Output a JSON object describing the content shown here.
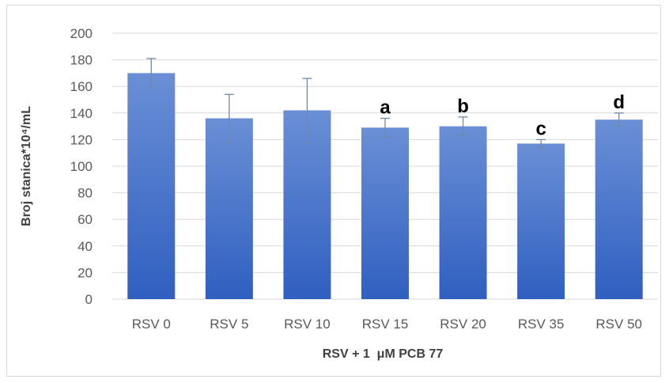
{
  "chart_data": {
    "type": "bar",
    "categories": [
      "RSV 0",
      "RSV 5",
      "RSV 10",
      "RSV 15",
      "RSV 20",
      "RSV 35",
      "RSV 50"
    ],
    "values": [
      170,
      136,
      142,
      129,
      130,
      117,
      135
    ],
    "error_plus": [
      11,
      18,
      24,
      7,
      7,
      3,
      5
    ],
    "error_minus": [
      11,
      18,
      25,
      7,
      7,
      3,
      5
    ],
    "bar_labels": [
      "",
      "",
      "",
      "a",
      "b",
      "c",
      "d"
    ],
    "ylim": [
      0,
      200
    ],
    "yticks": [
      0,
      20,
      40,
      60,
      80,
      100,
      120,
      140,
      160,
      180,
      200
    ],
    "ylabel": "Broj stanica*10⁴/mL",
    "xlabel": "RSV + 1  μM PCB 77",
    "grid": true,
    "colors": {
      "bar_top": "#6a8fd6",
      "bar_bottom": "#2f5fc0",
      "error": "#6f8aa8",
      "grid": "#d9d9d9"
    }
  }
}
